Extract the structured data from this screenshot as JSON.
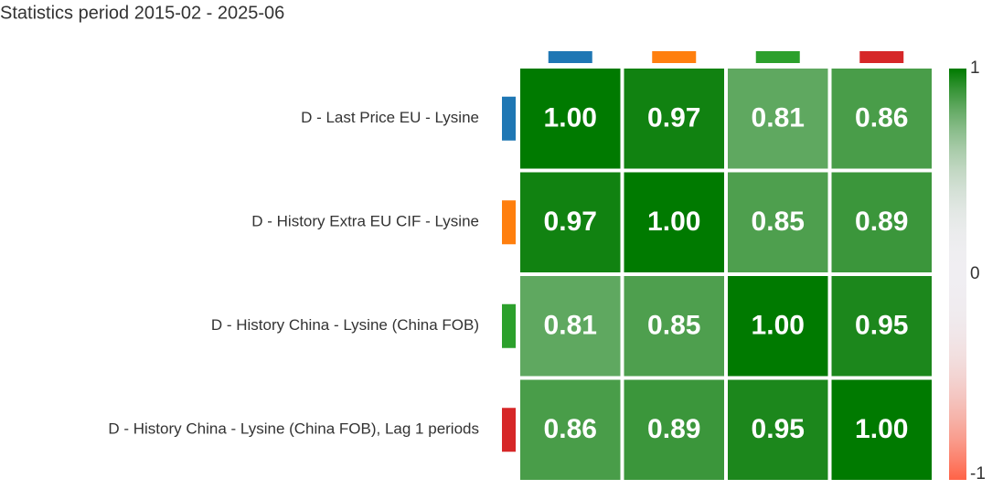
{
  "chart_data": {
    "type": "heatmap",
    "title": "Statistics period 2015-02 - 2025-06",
    "categories": [
      "D - Last Price EU - Lysine",
      "D - History Extra EU CIF - Lysine",
      "D - History China - Lysine (China FOB)",
      "D - History China - Lysine (China FOB), Lag 1 periods"
    ],
    "category_colors": [
      "#1f77b4",
      "#ff7f0e",
      "#2ca02c",
      "#d62728"
    ],
    "values": [
      [
        1,
        0.97,
        0.81,
        0.86
      ],
      [
        0.97,
        1,
        0.85,
        0.89
      ],
      [
        0.81,
        0.85,
        1,
        0.95
      ],
      [
        0.86,
        0.89,
        0.95,
        1
      ]
    ],
    "value_labels": [
      [
        "1.00",
        "0.97",
        "0.81",
        "0.86"
      ],
      [
        "0.97",
        "1.00",
        "0.85",
        "0.89"
      ],
      [
        "0.81",
        "0.85",
        "1.00",
        "0.95"
      ],
      [
        "0.86",
        "0.89",
        "0.95",
        "1.00"
      ]
    ],
    "colorscale": [
      "#ff6347",
      "#f0eef2",
      "#007a00"
    ],
    "zlim": [
      -1,
      1
    ],
    "zticks": [
      -1,
      0,
      1
    ]
  }
}
